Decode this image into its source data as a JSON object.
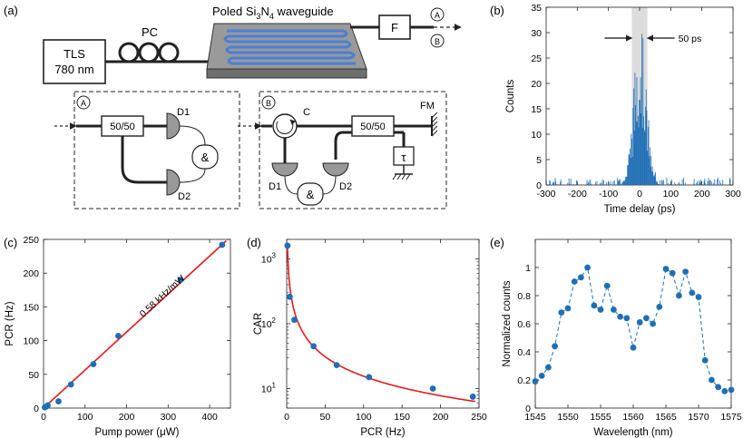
{
  "panel_labels": {
    "a": "(a)",
    "b": "(b)",
    "c": "(c)",
    "d": "(d)",
    "e": "(e)"
  },
  "setup": {
    "tls_line1": "TLS",
    "tls_line2": "780 nm",
    "pc": "PC",
    "waveguide_prefix": "Poled Si",
    "waveguide_sub1": "3",
    "waveguide_mid": "N",
    "waveguide_sub2": "4",
    "waveguide_suffix": " waveguide",
    "filter": "F",
    "out_a": "A",
    "out_b": "B"
  },
  "box_a": {
    "tag": "A",
    "splitter": "50/50",
    "d1": "D1",
    "d2": "D2",
    "and": "&"
  },
  "box_b": {
    "tag": "B",
    "circulator": "C",
    "splitter": "50/50",
    "fm": "FM",
    "delay": "τ",
    "d1": "D1",
    "d2": "D2",
    "and": "&"
  },
  "colors": {
    "data": "#1f6fb5",
    "fit": "#e41a1c",
    "axis": "#222222",
    "shade": "#dcdcdc",
    "wg": "#4a7fd6"
  },
  "chart_data": [
    {
      "id": "b",
      "type": "bar",
      "title": "",
      "xlabel": "Time delay (ps)",
      "ylabel": "Counts",
      "xlim": [
        -300,
        300
      ],
      "ylim": [
        0,
        35
      ],
      "xticks": [
        -300,
        -200,
        -100,
        0,
        100,
        200,
        300
      ],
      "yticks": [
        0,
        5,
        10,
        15,
        20,
        25,
        30,
        35
      ],
      "annotation": "50 ps",
      "shaded_region": [
        -25,
        25
      ],
      "histogram_note": "coincidence histogram, peak ~33 counts near 0 ps",
      "peak_profile": {
        "center": 0,
        "peak_counts": 33,
        "width_ps": 50,
        "background_counts": 0.5
      }
    },
    {
      "id": "c",
      "type": "scatter",
      "title": "",
      "xlabel": "Pump power (μW)",
      "ylabel": "PCR (Hz)",
      "xlim": [
        0,
        450
      ],
      "ylim": [
        0,
        250
      ],
      "xticks": [
        0,
        100,
        200,
        300,
        400
      ],
      "yticks": [
        0,
        50,
        100,
        150,
        200,
        250
      ],
      "annotation": "0.58 kHz/mW",
      "series": [
        {
          "name": "data",
          "x": [
            3,
            6,
            10,
            36,
            66,
            120,
            180,
            330,
            430
          ],
          "y": [
            1,
            2,
            4,
            10,
            35,
            65,
            107,
            190,
            242
          ]
        },
        {
          "name": "fit",
          "x": [
            0,
            440
          ],
          "y": [
            0,
            248
          ]
        }
      ]
    },
    {
      "id": "d",
      "type": "scatter",
      "title": "",
      "xlabel": "PCR (Hz)",
      "ylabel": "CAR",
      "xlim": [
        0,
        250
      ],
      "ylim": [
        5,
        2000
      ],
      "yscale": "log",
      "xticks": [
        0,
        50,
        100,
        150,
        200,
        250
      ],
      "yticks": [
        10,
        100,
        1000
      ],
      "ytick_labels": [
        [
          "10",
          "1"
        ],
        [
          "10",
          "2"
        ],
        [
          "10",
          "3"
        ]
      ],
      "series": [
        {
          "name": "data",
          "x": [
            1,
            4,
            10,
            35,
            65,
            107,
            190,
            242
          ],
          "y": [
            1600,
            260,
            115,
            45,
            23,
            15,
            10,
            7.5
          ]
        },
        {
          "name": "fit",
          "model": "A/x",
          "A": 1550
        }
      ]
    },
    {
      "id": "e",
      "type": "line",
      "title": "",
      "xlabel": "Wavelength (nm)",
      "ylabel": "Normalized counts",
      "xlim": [
        1545,
        1575
      ],
      "ylim": [
        0,
        1.2
      ],
      "xticks": [
        1545,
        1550,
        1555,
        1560,
        1565,
        1570,
        1575
      ],
      "yticks": [
        0,
        0.2,
        0.4,
        0.6,
        0.8,
        1
      ],
      "series": [
        {
          "name": "data",
          "x": [
            1545,
            1546,
            1547,
            1548,
            1549,
            1550,
            1551,
            1552,
            1553,
            1554,
            1555,
            1556,
            1557,
            1558,
            1559,
            1560,
            1561,
            1562,
            1563,
            1564,
            1565,
            1566,
            1567,
            1568,
            1569,
            1570,
            1571,
            1572,
            1573,
            1574,
            1575
          ],
          "y": [
            0.19,
            0.23,
            0.29,
            0.44,
            0.68,
            0.71,
            0.9,
            0.93,
            1.0,
            0.73,
            0.7,
            0.87,
            0.7,
            0.65,
            0.64,
            0.43,
            0.61,
            0.64,
            0.6,
            0.72,
            0.99,
            0.96,
            0.8,
            0.97,
            0.82,
            0.79,
            0.34,
            0.2,
            0.15,
            0.12,
            0.13
          ]
        }
      ]
    }
  ]
}
